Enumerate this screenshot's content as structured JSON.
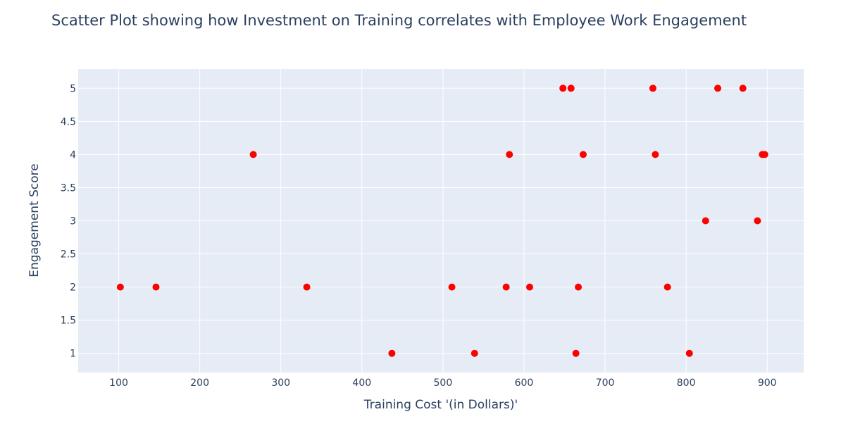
{
  "chart_data": {
    "type": "scatter",
    "title": "Scatter Plot showing how Investment on Training correlates with Employee Work Engagement",
    "xlabel": "Training Cost '(in Dollars)'",
    "ylabel": "Engagement Score",
    "xlim": [
      50,
      945
    ],
    "ylim": [
      0.71,
      5.29
    ],
    "x_ticks": [
      100,
      200,
      300,
      400,
      500,
      600,
      700,
      800,
      900
    ],
    "y_ticks": [
      1,
      1.5,
      2,
      2.5,
      3,
      3.5,
      4,
      4.5,
      5
    ],
    "grid": true,
    "legend": "none",
    "colors": {
      "marker": "#ff0000",
      "plot_bg": "#e5ecf6",
      "grid": "#ffffff",
      "text": "#2a3f5f"
    },
    "series": [
      {
        "x": [
          102,
          146,
          266,
          332,
          437,
          511,
          539,
          578,
          582,
          607,
          648,
          658,
          664,
          667,
          673,
          759,
          762,
          777,
          804,
          824,
          839,
          870,
          888,
          894,
          897
        ],
        "y": [
          2,
          2,
          4,
          2,
          1,
          2,
          1,
          2,
          4,
          2,
          5,
          5,
          1,
          2,
          4,
          5,
          4,
          2,
          1,
          3,
          5,
          5,
          3,
          4,
          4
        ]
      }
    ]
  }
}
